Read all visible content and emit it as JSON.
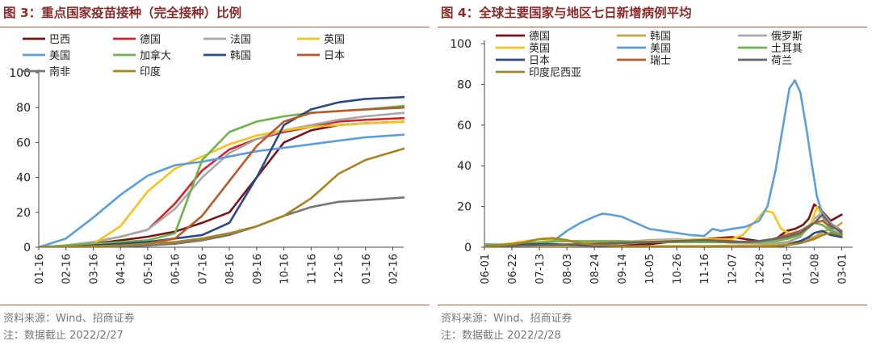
{
  "charts": [
    {
      "title": "图 3：重点国家疫苗接种（完全接种）比例",
      "source": "资料来源：Wind、招商证券",
      "note": "注：数据截止 2022/2/27",
      "chart_data": {
        "type": "line",
        "title": "图 3：重点国家疫苗接种（完全接种）比例",
        "xlabel": "",
        "ylabel": "",
        "ylim": [
          0,
          100
        ],
        "yticks": [
          0,
          20,
          40,
          60,
          80,
          100
        ],
        "xticks": [
          "01-16",
          "02-16",
          "03-16",
          "04-16",
          "05-16",
          "06-16",
          "07-16",
          "08-16",
          "09-16",
          "10-16",
          "11-16",
          "12-16",
          "01-16",
          "02-16"
        ],
        "series": [
          {
            "name": "巴西",
            "color": "#7b1416",
            "x": [
              0,
              1,
              2,
              3,
              4,
              5,
              6,
              7,
              8,
              9,
              10,
              11,
              12,
              13.4
            ],
            "values": [
              0,
              0.5,
              2,
              4,
              6,
              9,
              14,
              20,
              40,
              60,
              67,
              70,
              71,
              72
            ]
          },
          {
            "name": "德国",
            "color": "#d5232a",
            "x": [
              0,
              1,
              2,
              3,
              4,
              5,
              6,
              7,
              8,
              9,
              10,
              11,
              12,
              13.4
            ],
            "values": [
              0,
              1,
              3,
              6,
              10,
              25,
              44,
              56,
              62,
              66,
              69,
              72,
              73,
              74
            ]
          },
          {
            "name": "法国",
            "color": "#a8a8a8",
            "x": [
              0,
              1,
              2,
              3,
              4,
              5,
              6,
              7,
              8,
              9,
              10,
              11,
              12,
              13.4
            ],
            "values": [
              0,
              1,
              3,
              6,
              10,
              22,
              40,
              54,
              62,
              67,
              70,
              73,
              75,
              77
            ]
          },
          {
            "name": "英国",
            "color": "#f7c21b",
            "x": [
              0,
              1,
              2,
              3,
              4,
              5,
              6,
              7,
              8,
              9,
              10,
              11,
              12,
              13.4
            ],
            "values": [
              0,
              1,
              2,
              12,
              32,
              45,
              52,
              59,
              64,
              67,
              69,
              70,
              71,
              72
            ]
          },
          {
            "name": "美国",
            "color": "#5a9fdc",
            "x": [
              0,
              1,
              2,
              3,
              4,
              5,
              6,
              7,
              8,
              9,
              10,
              11,
              12,
              13.4
            ],
            "values": [
              0,
              5,
              17,
              30,
              41,
              47,
              49,
              52,
              55,
              57,
              59,
              61,
              63,
              64.5
            ]
          },
          {
            "name": "加拿大",
            "color": "#6db34a",
            "x": [
              0,
              1,
              2,
              3,
              4,
              5,
              6,
              7,
              8,
              9,
              10,
              11,
              12,
              13.4
            ],
            "values": [
              0,
              1,
              2,
              3,
              4,
              8,
              50,
              66,
              72,
              75,
              77,
              78,
              79,
              81
            ]
          },
          {
            "name": "韩国",
            "color": "#2b4a86",
            "x": [
              0,
              1,
              2,
              3,
              4,
              5,
              6,
              7,
              8,
              9,
              10,
              11,
              12,
              13.4
            ],
            "values": [
              0,
              0,
              1,
              2,
              3,
              5,
              7,
              14,
              40,
              70,
              79,
              83,
              85,
              86
            ]
          },
          {
            "name": "日本",
            "color": "#b85a2a",
            "x": [
              0,
              1,
              2,
              3,
              4,
              5,
              6,
              7,
              8,
              9,
              10,
              11,
              12,
              13.4
            ],
            "values": [
              0,
              0,
              0.5,
              1,
              2,
              5,
              18,
              38,
              58,
              72,
              77,
              78,
              79,
              80
            ]
          },
          {
            "name": "南非",
            "color": "#777777",
            "x": [
              0,
              1,
              2,
              3,
              4,
              5,
              6,
              7,
              8,
              9,
              10,
              11,
              12,
              13.4
            ],
            "values": [
              0,
              0,
              0,
              0.5,
              1,
              2,
              4,
              7,
              12,
              18,
              23,
              26,
              27,
              28.5
            ]
          },
          {
            "name": "印度",
            "color": "#a8841e",
            "x": [
              0,
              1,
              2,
              3,
              4,
              5,
              6,
              7,
              8,
              9,
              10,
              11,
              12,
              13.4
            ],
            "values": [
              0,
              0,
              0.5,
              1,
              2,
              3,
              5,
              8,
              12,
              18,
              28,
              42,
              50,
              56.5
            ]
          }
        ]
      }
    },
    {
      "title": "图 4：全球主要国家与地区七日新增病例平均",
      "source": "资料来源：Wind、招商证券",
      "note": "注：数据截止 2022/2/28",
      "chart_data": {
        "type": "line",
        "title": "图 4：全球主要国家与地区七日新增病例平均",
        "xlabel": "",
        "ylabel": "",
        "ylim": [
          0,
          100
        ],
        "yticks": [
          0,
          20,
          40,
          60,
          80,
          100
        ],
        "xticks": [
          "06-01",
          "06-22",
          "07-13",
          "08-03",
          "08-24",
          "09-14",
          "10-05",
          "10-26",
          "11-16",
          "12-07",
          "12-28",
          "01-18",
          "02-08",
          "03-01"
        ],
        "series": [
          {
            "name": "德国",
            "color": "#7b1416",
            "x": [
              0,
              1,
              2,
              3,
              4,
              5,
              6,
              7,
              8,
              9,
              9.5,
              10,
              10.3,
              10.6,
              11,
              11.3,
              11.6,
              11.8,
              12,
              12.2,
              12.6,
              13
            ],
            "values": [
              0.5,
              0.6,
              1.2,
              0.6,
              0.6,
              0.8,
              1.5,
              3,
              4,
              5,
              4,
              3,
              3,
              4,
              8,
              9,
              11,
              14,
              21,
              19,
              13,
              16
            ]
          },
          {
            "name": "韩国",
            "color": "#c6a548",
            "x": [
              0,
              2,
              4,
              6,
              8,
              9,
              10,
              10.5,
              11,
              11.5,
              12,
              12.4,
              12.8,
              13
            ],
            "values": [
              0.2,
              0.3,
              0.4,
              0.5,
              0.6,
              0.8,
              1,
              1.5,
              2,
              3,
              5,
              8,
              10,
              12
            ]
          },
          {
            "name": "俄罗斯",
            "color": "#a8a8a8",
            "x": [
              0,
              1,
              2,
              3,
              4,
              5,
              6,
              7,
              8,
              9,
              10,
              11,
              11.5,
              12,
              12.3,
              12.6,
              13
            ],
            "values": [
              0.8,
              1,
              1.3,
              1.5,
              1.8,
              2.5,
              3.5,
              4,
              3,
              2.2,
              2,
              2.5,
              5,
              14,
              17,
              12,
              8
            ]
          },
          {
            "name": "英国",
            "color": "#f7c21b",
            "x": [
              0,
              1,
              2,
              3,
              3.5,
              4,
              5,
              6,
              7,
              8,
              9,
              9.4,
              9.8,
              10.2,
              10.5,
              10.8,
              11.2,
              11.6,
              11.9,
              12.1,
              12.3,
              12.6,
              13
            ],
            "values": [
              0.5,
              2,
              4,
              3,
              2.5,
              3,
              2.5,
              3,
              3.5,
              4,
              4,
              6,
              12,
              18,
              17,
              9,
              6,
              7,
              12,
              20,
              15,
              8,
              6
            ]
          },
          {
            "name": "美国",
            "color": "#5a9fdc",
            "x": [
              0,
              1,
              2,
              2.5,
              3,
              3.5,
              4,
              4.3,
              4.6,
              5,
              5.5,
              6,
              7,
              7.5,
              8,
              8.3,
              8.6,
              9,
              9.5,
              10,
              10.3,
              10.6,
              10.9,
              11.1,
              11.3,
              11.5,
              11.7,
              11.9,
              12.1,
              12.4,
              12.7,
              13
            ],
            "values": [
              1.5,
              1.2,
              1.5,
              3,
              8,
              12,
              15,
              16.5,
              16,
              15,
              12,
              9,
              7,
              6,
              5.5,
              9,
              8,
              9,
              10,
              13,
              20,
              38,
              62,
              78,
              82,
              76,
              60,
              42,
              25,
              12,
              8,
              6
            ]
          },
          {
            "name": "土耳其",
            "color": "#6db34a",
            "x": [
              0,
              1,
              2,
              3,
              4,
              5,
              6,
              7,
              8,
              9,
              10,
              10.5,
              11,
              11.5,
              12,
              12.3,
              12.6,
              13
            ],
            "values": [
              1,
              1.5,
              2.5,
              3,
              3,
              3,
              2.5,
              2.5,
              2.5,
              2.5,
              2.5,
              3,
              4,
              6,
              12,
              11,
              8,
              6
            ]
          },
          {
            "name": "日本",
            "color": "#2b4a86",
            "x": [
              0,
              1,
              1.8,
              2.5,
              3,
              4,
              5,
              6,
              7,
              8,
              9,
              10,
              10.5,
              11,
              11.5,
              11.8,
              12,
              12.3,
              12.6,
              13
            ],
            "values": [
              0.5,
              1,
              1.5,
              1.5,
              1.2,
              0.6,
              0.3,
              0.1,
              0.1,
              0.1,
              0.1,
              0.1,
              0.2,
              1,
              3,
              5,
              7,
              8,
              6,
              5
            ]
          },
          {
            "name": "瑞士",
            "color": "#b85a2a",
            "x": [
              0,
              1,
              2,
              3,
              4,
              5,
              6,
              7,
              8,
              9,
              9.5,
              10,
              10.5,
              11,
              11.5,
              12,
              12.3,
              12.6,
              13
            ],
            "values": [
              0.5,
              0.6,
              1,
              1.3,
              1.8,
              2.2,
              2.5,
              3,
              3.5,
              3,
              2.5,
              3,
              4,
              6,
              8,
              12,
              13,
              10,
              8
            ]
          },
          {
            "name": "荷兰",
            "color": "#666666",
            "x": [
              0,
              1,
              2,
              3,
              4,
              5,
              6,
              7,
              8,
              9,
              10,
              10.5,
              11,
              11.5,
              12,
              12.3,
              12.6,
              13
            ],
            "values": [
              0.3,
              0.5,
              1,
              1.2,
              1.5,
              2,
              2.5,
              3,
              3.5,
              2.5,
              3,
              4,
              5,
              7,
              12,
              16,
              11,
              7
            ]
          },
          {
            "name": "印度尼西亚",
            "color": "#a8841e",
            "x": [
              0,
              0.5,
              1,
              1.5,
              2,
              2.5,
              3,
              3.5,
              4,
              5,
              6,
              7,
              8,
              9,
              10,
              10.5,
              11,
              11.5,
              12,
              12.3,
              12.6,
              13
            ],
            "values": [
              0.5,
              0.8,
              1.5,
              2.5,
              4,
              4.5,
              3.5,
              2,
              1,
              0.5,
              0.3,
              0.2,
              0.2,
              0.2,
              0.2,
              0.5,
              1,
              2,
              4,
              6,
              7,
              6
            ]
          }
        ]
      }
    }
  ]
}
